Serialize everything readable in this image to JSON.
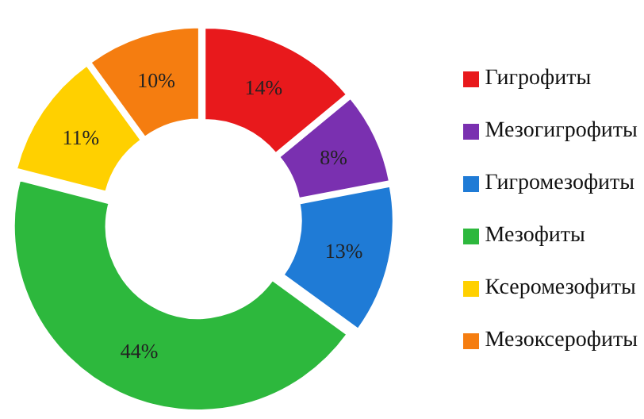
{
  "chart_data": {
    "type": "donut",
    "categories": [
      "Гигрофиты",
      "Мезогигрофиты",
      "Гигромезофиты",
      "Мезофиты",
      "Ксеромезофиты",
      "Мезоксерофиты"
    ],
    "values": [
      14,
      8,
      13,
      44,
      11,
      10
    ],
    "value_labels": [
      "14%",
      "8%",
      "13%",
      "44%",
      "11%",
      "10%"
    ],
    "colors": [
      "#e8191c",
      "#7a30b0",
      "#1f7bd6",
      "#2db83d",
      "#ffd000",
      "#f57d10"
    ],
    "legend": "right"
  }
}
